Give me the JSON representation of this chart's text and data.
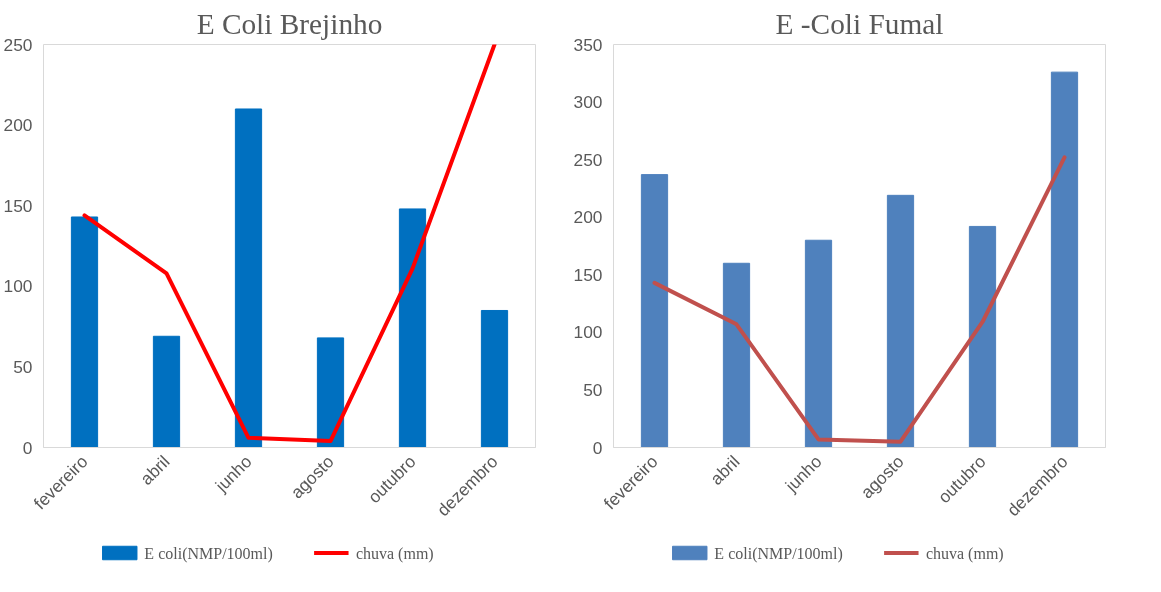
{
  "chart_data": [
    {
      "type": "bar",
      "title": "E Coli Brejinho",
      "categories": [
        "fevereiro",
        "abril",
        "junho",
        "agosto",
        "outubro",
        "dezembro"
      ],
      "series": [
        {
          "name": "E coli(NMP/100ml)",
          "color": "#0070c0",
          "values": [
            143,
            69,
            210,
            68,
            148,
            85
          ]
        },
        {
          "name": "chuva (mm)",
          "type": "line",
          "color": "#ff0000",
          "values": [
            144,
            108,
            6,
            4,
            111,
            250
          ]
        }
      ],
      "ylim": [
        0,
        250
      ],
      "yticks": [
        0,
        50,
        100,
        150,
        200,
        250
      ],
      "grid": false,
      "legend": "bottom"
    },
    {
      "type": "bar",
      "title": "E -Coli Fumal",
      "categories": [
        "fevereiro",
        "abril",
        "junho",
        "agosto",
        "outubro",
        "dezembro"
      ],
      "series": [
        {
          "name": "E coli(NMP/100ml)",
          "color": "#4f81bd",
          "values": [
            237,
            160,
            180,
            219,
            192,
            326
          ]
        },
        {
          "name": "chuva (mm)",
          "type": "line",
          "color": "#c0504d",
          "values": [
            143,
            107,
            7,
            5,
            109,
            252
          ]
        }
      ],
      "ylim": [
        0,
        350
      ],
      "yticks": [
        0,
        50,
        100,
        150,
        200,
        250,
        300,
        350
      ],
      "grid": false,
      "legend": "bottom"
    }
  ]
}
